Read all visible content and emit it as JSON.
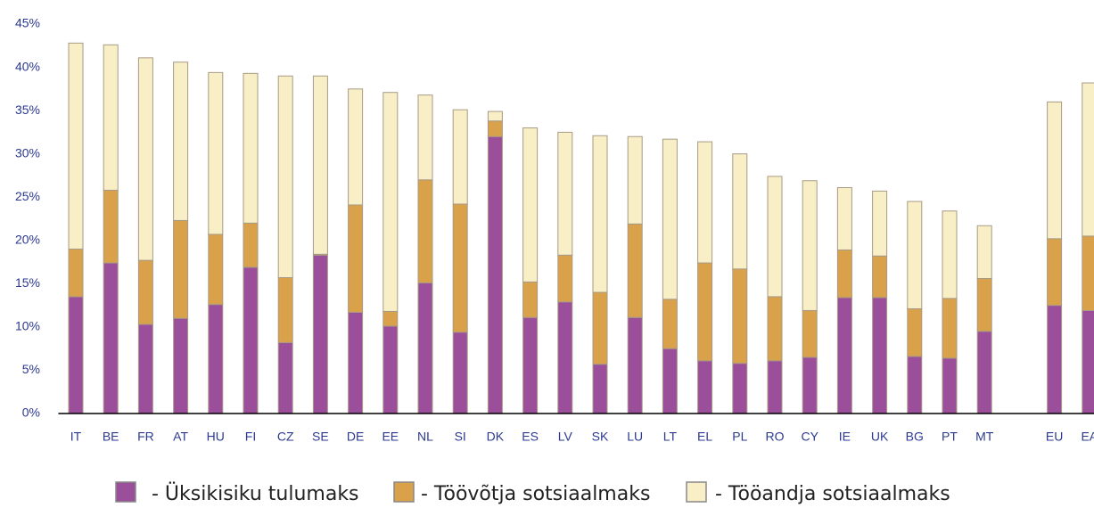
{
  "chart_data": {
    "type": "stacked-bar",
    "categories": [
      "IT",
      "BE",
      "FR",
      "AT",
      "HU",
      "FI",
      "CZ",
      "SE",
      "DE",
      "EE",
      "NL",
      "SI",
      "DK",
      "ES",
      "LV",
      "SK",
      "LU",
      "LT",
      "EL",
      "PL",
      "RO",
      "CY",
      "IE",
      "UK",
      "BG",
      "PT",
      "MT",
      null,
      "EU",
      "EA"
    ],
    "series": [
      {
        "name": "- Üksikisiku tulumaks",
        "color": "#9b4f9b",
        "values": [
          13.5,
          17.4,
          10.3,
          11,
          12.6,
          16.9,
          8.2,
          18.3,
          11.7,
          10.1,
          15.1,
          9.4,
          32,
          11.1,
          12.9,
          5.7,
          11.1,
          7.5,
          6.1,
          5.8,
          6.1,
          6.5,
          13.4,
          13.4,
          6.6,
          6.4,
          9.5,
          null,
          12.5,
          11.9
        ]
      },
      {
        "name": "- Töövõtja sotsiaalmaks",
        "color": "#d9a24a",
        "values": [
          5.5,
          8.4,
          7.4,
          11.3,
          8.1,
          5.1,
          7.5,
          0.1,
          12.4,
          1.7,
          11.9,
          14.8,
          1.8,
          4.1,
          5.4,
          8.3,
          10.8,
          5.7,
          11.3,
          10.9,
          7.4,
          5.4,
          5.5,
          4.8,
          5.5,
          6.9,
          6.1,
          null,
          7.7,
          8.6
        ]
      },
      {
        "name": "- Tööandja sotsiaalmaks",
        "color": "#f8efc6",
        "values": [
          23.8,
          16.8,
          23.4,
          18.3,
          18.7,
          17.3,
          23.3,
          20.6,
          13.4,
          25.3,
          9.8,
          10.9,
          1.1,
          17.8,
          14.2,
          18.1,
          10.1,
          18.5,
          14,
          13.3,
          13.9,
          15,
          7.2,
          7.5,
          12.4,
          10.1,
          6.1,
          null,
          15.8,
          17.7
        ]
      }
    ],
    "ylim": [
      0,
      45
    ],
    "yticks": [
      {
        "value": 0,
        "label": "0%"
      },
      {
        "value": 5,
        "label": "5%"
      },
      {
        "value": 10,
        "label": "10%"
      },
      {
        "value": 15,
        "label": "15%"
      },
      {
        "value": 20,
        "label": "20%"
      },
      {
        "value": 25,
        "label": "25%"
      },
      {
        "value": 30,
        "label": "30%"
      },
      {
        "value": 35,
        "label": "35%"
      },
      {
        "value": 40,
        "label": "40%"
      },
      {
        "value": 45,
        "label": "45%"
      }
    ],
    "grid": false,
    "legend": "bottom"
  }
}
